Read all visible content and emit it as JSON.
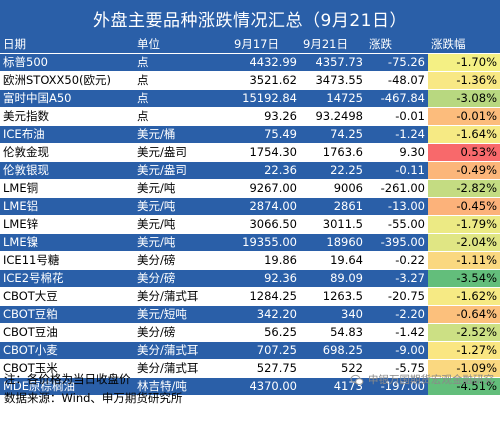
{
  "title": "外盘主要品种涨跌情况汇总（9月21日）",
  "headers": [
    "日期",
    "单位",
    "9月17日",
    "9月21日",
    "涨跌",
    "涨跌幅"
  ],
  "rows": [
    {
      "name": "标普500",
      "unit": "点",
      "d1": "4432.99",
      "d2": "4357.73",
      "chg": "-75.26",
      "pct": "-1.70%",
      "color": "#f4f084"
    },
    {
      "name": "欧洲STOXX50(欧元)",
      "unit": "点",
      "d1": "3521.62",
      "d2": "3473.55",
      "chg": "-48.07",
      "pct": "-1.36%",
      "color": "#f8e884"
    },
    {
      "name": "富时中国A50",
      "unit": "点",
      "d1": "15192.84",
      "d2": "14725",
      "chg": "-467.84",
      "pct": "-3.08%",
      "color": "#b8d880"
    },
    {
      "name": "美元指数",
      "unit": "点",
      "d1": "93.26",
      "d2": "93.2498",
      "chg": "-0.01",
      "pct": "-0.01%",
      "color": "#fcbc7c"
    },
    {
      "name": "ICE布油",
      "unit": "美元/桶",
      "d1": "75.49",
      "d2": "74.25",
      "chg": "-1.24",
      "pct": "-1.64%",
      "color": "#f6ea84"
    },
    {
      "name": "伦敦金现",
      "unit": "美元/盎司",
      "d1": "1754.30",
      "d2": "1763.6",
      "chg": "9.30",
      "pct": "0.53%",
      "color": "#f8696b"
    },
    {
      "name": "伦敦银现",
      "unit": "美元/盎司",
      "d1": "22.36",
      "d2": "22.25",
      "chg": "-0.11",
      "pct": "-0.49%",
      "color": "#fcb67a"
    },
    {
      "name": "LME铜",
      "unit": "美元/吨",
      "d1": "9267.00",
      "d2": "9006",
      "chg": "-261.00",
      "pct": "-2.82%",
      "color": "#c4dc82"
    },
    {
      "name": "LME铝",
      "unit": "美元/吨",
      "d1": "2874.00",
      "d2": "2861",
      "chg": "-13.00",
      "pct": "-0.45%",
      "color": "#fcb27a"
    },
    {
      "name": "LME锌",
      "unit": "美元/吨",
      "d1": "3066.50",
      "d2": "3011.5",
      "chg": "-55.00",
      "pct": "-1.79%",
      "color": "#ecea84"
    },
    {
      "name": "LME镍",
      "unit": "美元/吨",
      "d1": "19355.00",
      "d2": "18960",
      "chg": "-395.00",
      "pct": "-2.04%",
      "color": "#e0e684"
    },
    {
      "name": "ICE11号糖",
      "unit": "美分/磅",
      "d1": "19.86",
      "d2": "19.64",
      "chg": "-0.22",
      "pct": "-1.11%",
      "color": "#fad880"
    },
    {
      "name": "ICE2号棉花",
      "unit": "美分/磅",
      "d1": "92.36",
      "d2": "89.09",
      "chg": "-3.27",
      "pct": "-3.54%",
      "color": "#63be7b"
    },
    {
      "name": "CBOT大豆",
      "unit": "美分/蒲式耳",
      "d1": "1284.25",
      "d2": "1263.5",
      "chg": "-20.75",
      "pct": "-1.62%",
      "color": "#f6ea84"
    },
    {
      "name": "CBOT豆粕",
      "unit": "美元/短吨",
      "d1": "342.20",
      "d2": "340",
      "chg": "-2.20",
      "pct": "-0.64%",
      "color": "#fcc07c"
    },
    {
      "name": "CBOT豆油",
      "unit": "美分/磅",
      "d1": "56.25",
      "d2": "54.83",
      "chg": "-1.42",
      "pct": "-2.52%",
      "color": "#cce084"
    },
    {
      "name": "CBOT小麦",
      "unit": "美分/蒲式耳",
      "d1": "707.25",
      "d2": "698.25",
      "chg": "-9.00",
      "pct": "-1.27%",
      "color": "#fae682"
    },
    {
      "name": "CBOT玉米",
      "unit": "美分/蒲式耳",
      "d1": "527.75",
      "d2": "522",
      "chg": "-5.75",
      "pct": "-1.09%",
      "color": "#fad880"
    },
    {
      "name": "MDE原棕榈油",
      "unit": "林吉特/吨",
      "d1": "4370.00",
      "d2": "4173",
      "chg": "-197.00",
      "pct": "-4.51%",
      "color": "#63be7b"
    }
  ],
  "note": "注：各价格为当日收盘价",
  "source": "数据来源：Wind、申万期货研究所",
  "watermark": "申银万国期货宏观金融研究"
}
